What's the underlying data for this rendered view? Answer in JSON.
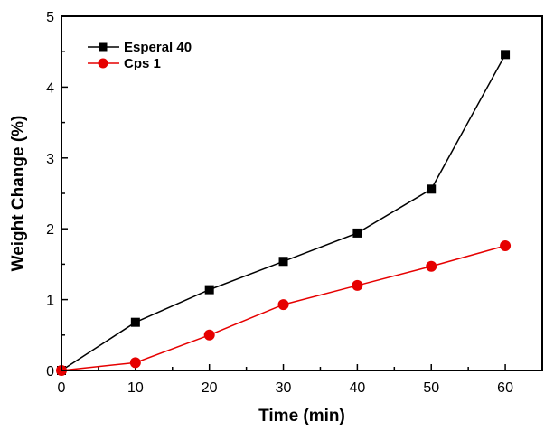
{
  "chart_data": {
    "type": "line",
    "title": "",
    "xlabel": "Time (min)",
    "ylabel": "Weight Change (%)",
    "xlim": [
      0,
      65
    ],
    "ylim": [
      0,
      5
    ],
    "x_ticks": [
      0,
      10,
      20,
      30,
      40,
      50,
      60
    ],
    "y_ticks": [
      0,
      1,
      2,
      3,
      4,
      5
    ],
    "x_minor_ticks": [
      5,
      15,
      25,
      35,
      45,
      55
    ],
    "y_minor_ticks": [
      0.5,
      1.5,
      2.5,
      3.5,
      4.5
    ],
    "grid": false,
    "legend_position": "top-left",
    "x": [
      0,
      10,
      20,
      30,
      40,
      50,
      60
    ],
    "series": [
      {
        "name": "Esperal 40",
        "color": "#000000",
        "marker": "square",
        "values": [
          0,
          0.68,
          1.14,
          1.54,
          1.94,
          2.56,
          4.46
        ]
      },
      {
        "name": "Cps 1",
        "color": "#e60000",
        "marker": "circle",
        "values": [
          0,
          0.11,
          0.5,
          0.93,
          1.2,
          1.47,
          1.76
        ]
      }
    ]
  }
}
